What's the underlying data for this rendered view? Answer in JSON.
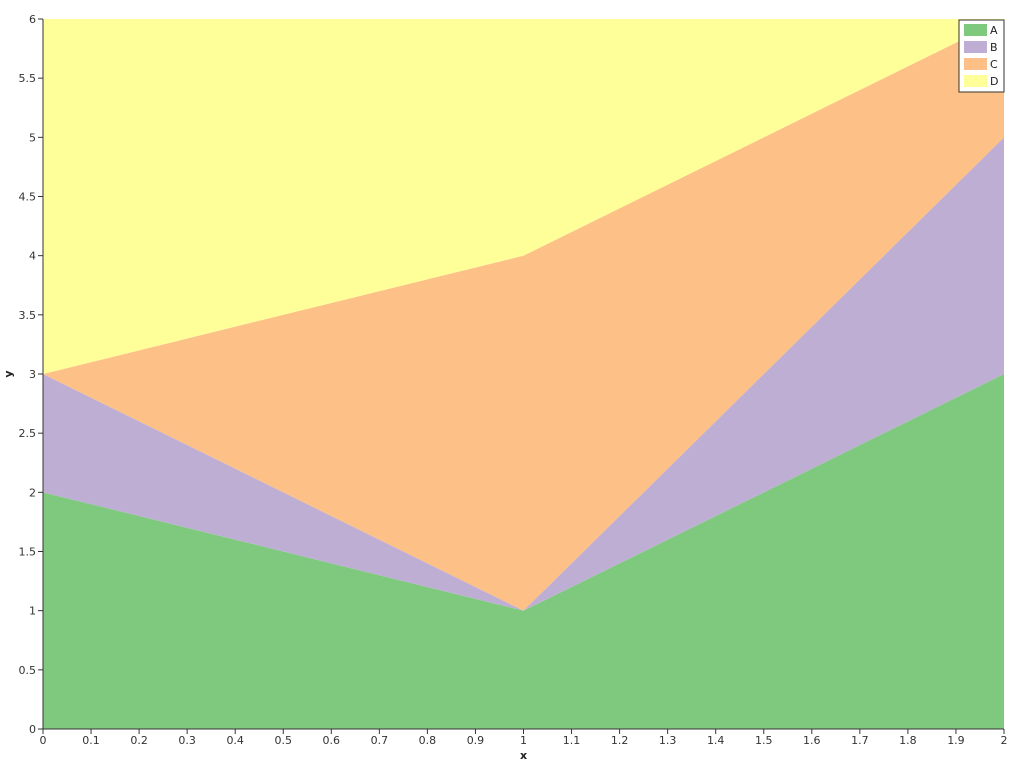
{
  "chart_data": {
    "type": "area",
    "stacked": true,
    "x": [
      0,
      1,
      2
    ],
    "series": [
      {
        "name": "A",
        "values": [
          2,
          1,
          3
        ],
        "color": "#7fc97f"
      },
      {
        "name": "B",
        "values": [
          1,
          0,
          2
        ],
        "color": "#beaed4"
      },
      {
        "name": "C",
        "values": [
          0,
          3,
          1
        ],
        "color": "#fdc086"
      },
      {
        "name": "D",
        "values": [
          3,
          2,
          0
        ],
        "color": "#ffff99"
      }
    ],
    "xlabel": "x",
    "ylabel": "y",
    "xlim": [
      0,
      2
    ],
    "ylim": [
      0,
      6
    ],
    "xticks": [
      "0",
      "0.1",
      "0.2",
      "0.3",
      "0.4",
      "0.5",
      "0.6",
      "0.7",
      "0.8",
      "0.9",
      "1",
      "1.1",
      "1.2",
      "1.3",
      "1.4",
      "1.5",
      "1.6",
      "1.7",
      "1.8",
      "1.9",
      "2"
    ],
    "yticks": [
      "0",
      "0.5",
      "1",
      "1.5",
      "2",
      "2.5",
      "3",
      "3.5",
      "4",
      "4.5",
      "5",
      "5.5",
      "6"
    ],
    "grid": false,
    "legend": "top-right"
  }
}
